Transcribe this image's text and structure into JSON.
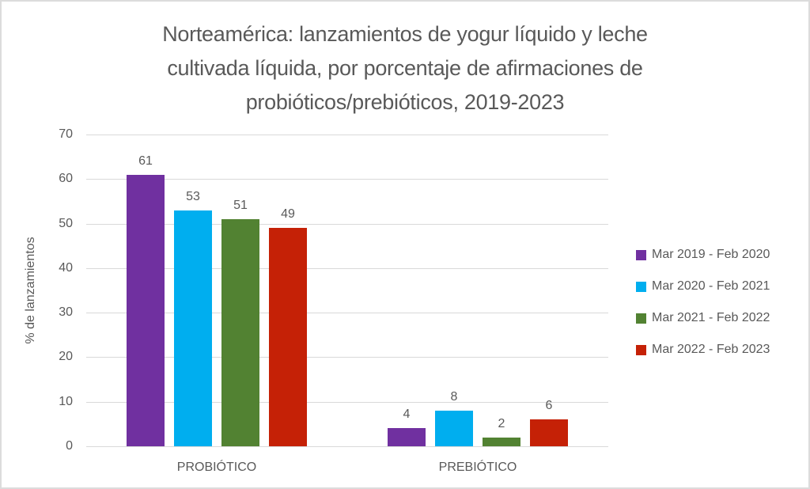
{
  "page": {
    "background": "#FFFFFF",
    "border_color": "#DCDCDC"
  },
  "chart_data": {
    "type": "bar",
    "title": "Norteamérica: lanzamientos de yogur líquido y leche cultivada líquida, por porcentaje de afirmaciones de probióticos/prebióticos, 2019-2023",
    "title_lines": [
      "Norteamérica: lanzamientos de yogur líquido y leche",
      "cultivada líquida, por porcentaje de afirmaciones de",
      "probióticos/prebióticos, 2019-2023"
    ],
    "xlabel": "",
    "ylabel": "% de lanzamientos",
    "categories": [
      "PROBIÓTICO",
      "PREBIÓTICO"
    ],
    "series": [
      {
        "name": "Mar 2019 - Feb 2020",
        "color": "#7030A0",
        "values": [
          61,
          4
        ]
      },
      {
        "name": "Mar 2020 - Feb 2021",
        "color": "#00AEEF",
        "values": [
          53,
          8
        ]
      },
      {
        "name": "Mar 2021 - Feb 2022",
        "color": "#528232",
        "values": [
          51,
          2
        ]
      },
      {
        "name": "Mar 2022 - Feb 2023",
        "color": "#C52106",
        "values": [
          49,
          6
        ]
      }
    ],
    "ylim": [
      0,
      70
    ],
    "yticks": [
      0,
      10,
      20,
      30,
      40,
      50,
      60,
      70
    ],
    "grid": true,
    "data_labels": true,
    "legend_position": "right",
    "text_color": "#595959",
    "gridline_color": "#D9D9D9"
  }
}
